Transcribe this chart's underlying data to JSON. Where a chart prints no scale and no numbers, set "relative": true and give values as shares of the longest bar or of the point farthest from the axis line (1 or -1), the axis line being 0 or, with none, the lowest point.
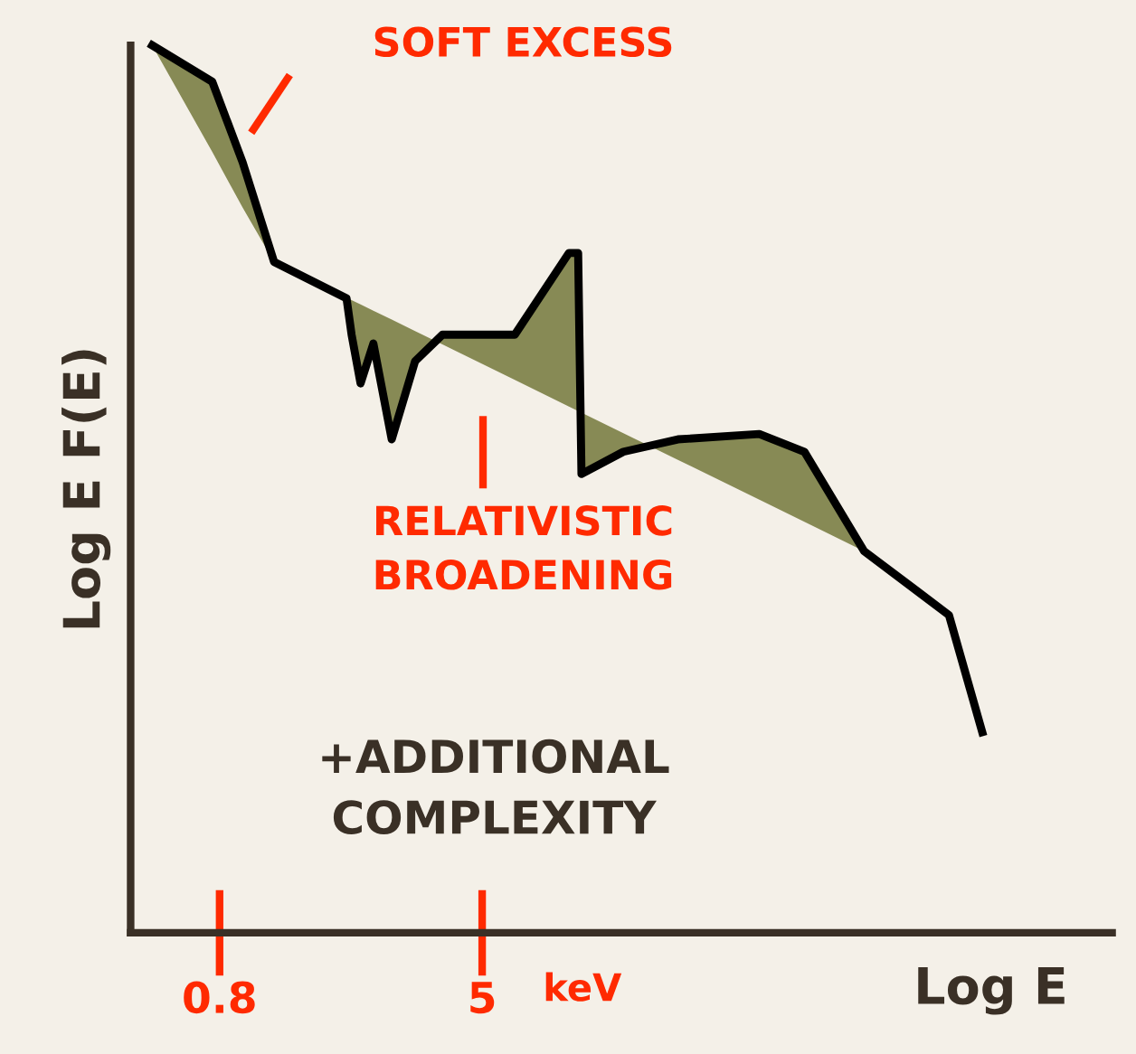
{
  "chart_data": {
    "type": "line",
    "relative": true,
    "xlabel": "Log E",
    "ylabel": "Log E F(E)",
    "log": "x",
    "xlim": [
      0.43,
      406
    ],
    "xticks": [
      0.8,
      5
    ],
    "grid": false,
    "legend": false,
    "marker": "none",
    "line_style": "solid",
    "series": [
      {
        "color": "#000000",
        "x": [
          0.5,
          0.76,
          0.94,
          1.17,
          1.94,
          2.01,
          2.14,
          2.34,
          2.66,
          3.13,
          3.79,
          6.28,
          9.16,
          9.77,
          10.0,
          13.4,
          19.6,
          34.6,
          47.4,
          71.9,
          130,
          164
        ],
        "values": [
          1.0,
          0.959,
          0.868,
          0.756,
          0.715,
          0.674,
          0.619,
          0.664,
          0.556,
          0.644,
          0.674,
          0.674,
          0.766,
          0.766,
          0.517,
          0.542,
          0.556,
          0.562,
          0.542,
          0.43,
          0.358,
          0.226
        ],
        "lower": [
          1.0,
          0.88,
          0.817,
          0.756,
          0.716,
          0.713,
          0.708,
          0.701,
          0.691,
          0.678,
          0.663,
          0.623,
          0.593,
          0.588,
          0.586,
          0.563,
          0.533,
          0.488,
          0.463,
          0.43,
          null,
          null
        ],
        "upper": [
          1.0,
          0.959,
          0.868,
          0.756,
          0.715,
          0.674,
          0.619,
          0.664,
          0.556,
          0.644,
          0.674,
          0.674,
          0.766,
          0.766,
          0.517,
          0.542,
          0.556,
          0.562,
          0.542,
          0.43,
          null,
          null
        ]
      }
    ],
    "annotations": [
      "SOFT EXCESS",
      "RELATIVISTIC\nBROADENING",
      "keV",
      "+ADDITIONAL\nCOMPLEXITY"
    ]
  }
}
